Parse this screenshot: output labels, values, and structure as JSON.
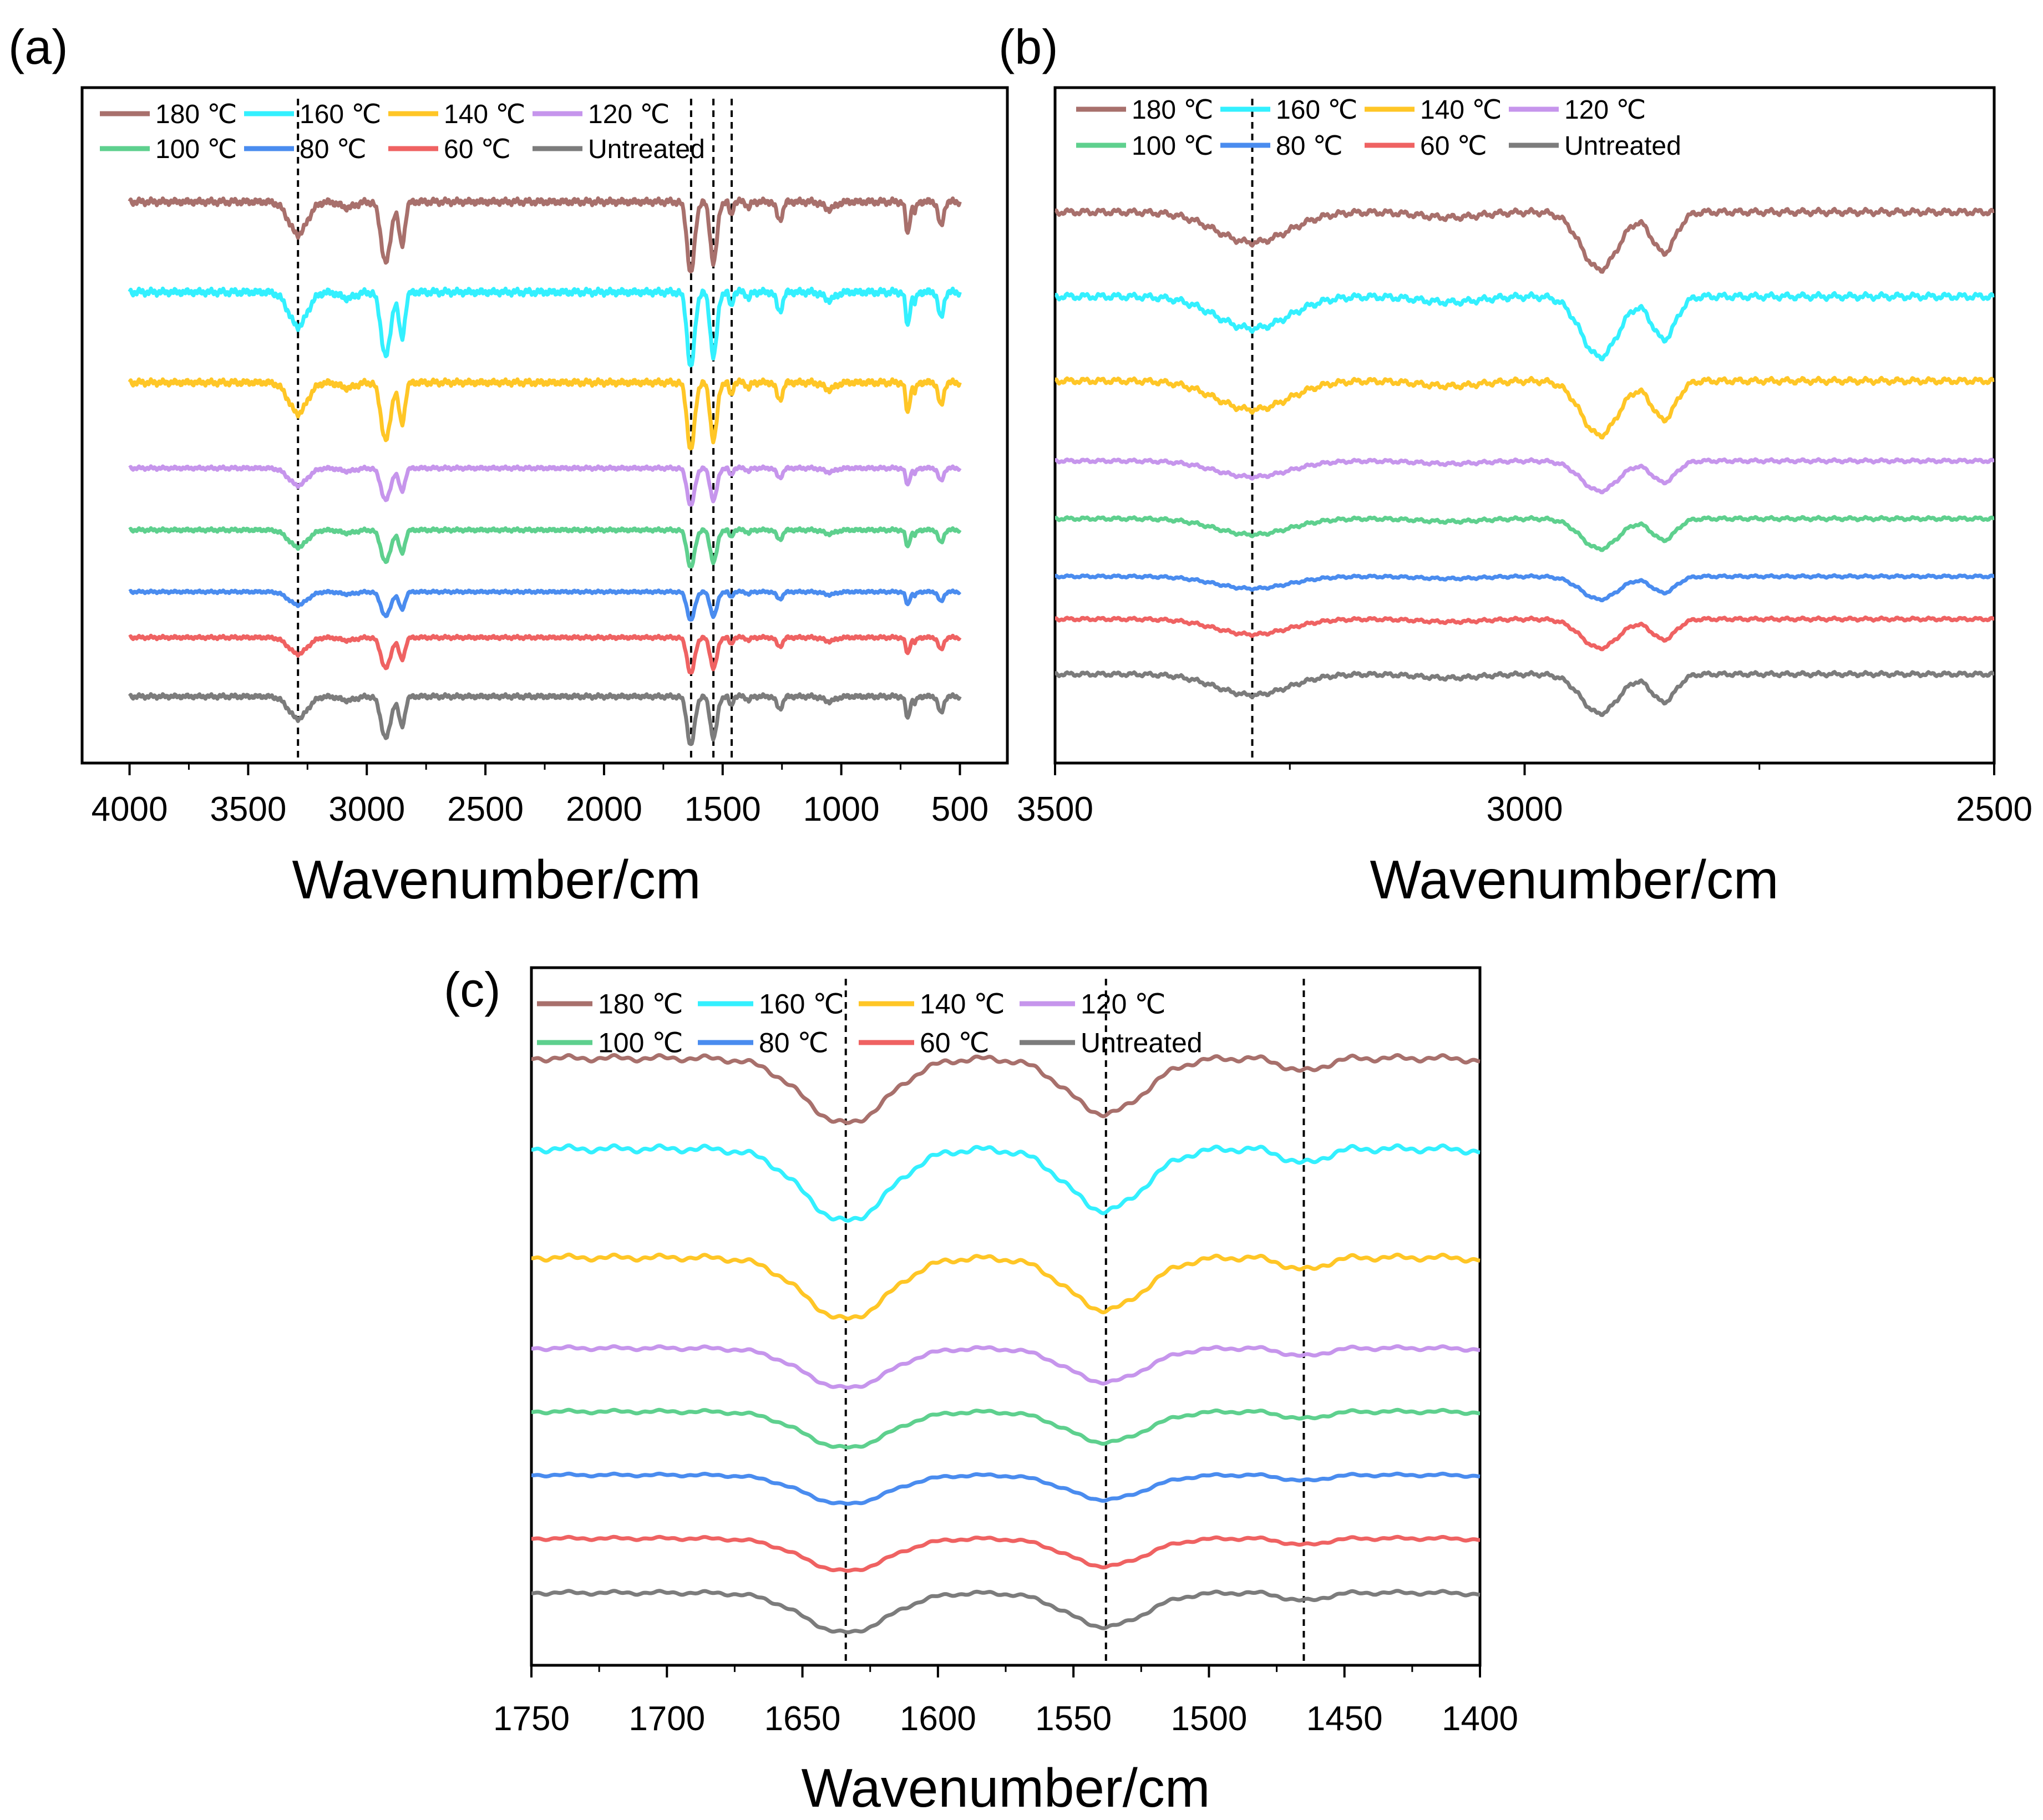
{
  "colors": {
    "180 ℃": "#a8706c",
    "160 ℃": "#33f0ff",
    "140 ℃": "#ffc626",
    "120 ℃": "#c695ec",
    "100 ℃": "#5ed08e",
    "80 ℃": "#4a8cef",
    "60 ℃": "#ef6262",
    "Untreated": "#7c7c7c",
    "dashed_line": "#000000"
  },
  "chart_data": [
    {
      "panel": "(a)",
      "type": "line",
      "title": "",
      "xlabel": "Wavenumber/cm",
      "ylabel": "",
      "xlim": [
        4200,
        300
      ],
      "x_ticks": [
        4000,
        3500,
        3000,
        2500,
        2000,
        1500,
        1000,
        500
      ],
      "x_tick_labels": [
        "4000",
        "3500",
        "3000",
        "2500",
        "2000",
        "1500",
        "1000",
        "500"
      ],
      "x_range": [
        4000,
        500
      ],
      "marker_lines": [
        3290,
        1633,
        1539,
        1462
      ],
      "legend": {
        "position": "top-left",
        "row1": [
          "180 ℃",
          "160 ℃",
          "140 ℃",
          "120 ℃"
        ],
        "row2": [
          "100 ℃",
          "80 ℃",
          "60 ℃",
          "Untreated"
        ]
      },
      "series": [
        {
          "name": "180 ℃",
          "baseline": 6.2,
          "scale": 0.95
        },
        {
          "name": "160 ℃",
          "baseline": 5.25,
          "scale": 1.0
        },
        {
          "name": "140 ℃",
          "baseline": 4.3,
          "scale": 0.9
        },
        {
          "name": "120 ℃",
          "baseline": 3.4,
          "scale": 0.5
        },
        {
          "name": "100 ℃",
          "baseline": 2.75,
          "scale": 0.5
        },
        {
          "name": "80 ℃",
          "baseline": 2.1,
          "scale": 0.38
        },
        {
          "name": "60 ℃",
          "baseline": 1.62,
          "scale": 0.48
        },
        {
          "name": "Untreated",
          "baseline": 1.0,
          "scale": 0.65
        }
      ]
    },
    {
      "panel": "(b)",
      "type": "line",
      "title": "",
      "xlabel": "Wavenumber/cm",
      "ylabel": "",
      "xlim": [
        3500,
        2500
      ],
      "x_ticks": [
        3500,
        3000,
        2500
      ],
      "x_tick_labels": [
        "3500",
        "3000",
        "2500"
      ],
      "x_range": [
        3500,
        2500
      ],
      "marker_lines": [
        3290
      ],
      "legend": {
        "position": "top-left",
        "row1": [
          "180 ℃",
          "160 ℃",
          "140 ℃",
          "120 ℃"
        ],
        "row2": [
          "100 ℃",
          "80 ℃",
          "60 ℃",
          "Untreated"
        ]
      },
      "series": [
        {
          "name": "180 ℃",
          "baseline": 6.2,
          "scale": 0.95
        },
        {
          "name": "160 ℃",
          "baseline": 5.25,
          "scale": 1.0
        },
        {
          "name": "140 ℃",
          "baseline": 4.3,
          "scale": 0.9
        },
        {
          "name": "120 ℃",
          "baseline": 3.4,
          "scale": 0.5
        },
        {
          "name": "100 ℃",
          "baseline": 2.75,
          "scale": 0.5
        },
        {
          "name": "80 ℃",
          "baseline": 2.1,
          "scale": 0.38
        },
        {
          "name": "60 ℃",
          "baseline": 1.62,
          "scale": 0.48
        },
        {
          "name": "Untreated",
          "baseline": 1.0,
          "scale": 0.65
        }
      ]
    },
    {
      "panel": "(c)",
      "type": "line",
      "title": "",
      "xlabel": "Wavenumber/cm",
      "ylabel": "",
      "xlim": [
        1750,
        1400
      ],
      "x_ticks": [
        1750,
        1700,
        1650,
        1600,
        1550,
        1500,
        1450,
        1400
      ],
      "x_tick_labels": [
        "1750",
        "1700",
        "1650",
        "1600",
        "1550",
        "1500",
        "1450",
        "1400"
      ],
      "x_range": [
        1750,
        1400
      ],
      "marker_lines": [
        1634,
        1538,
        1465
      ],
      "legend": {
        "position": "top-left",
        "row1": [
          "180 ℃",
          "160 ℃",
          "140 ℃",
          "120 ℃"
        ],
        "row2": [
          "100 ℃",
          "80 ℃",
          "60 ℃",
          "Untreated"
        ]
      },
      "series": [
        {
          "name": "180 ℃",
          "baseline": 8.6,
          "scale": 0.9
        },
        {
          "name": "160 ℃",
          "baseline": 7.6,
          "scale": 1.0
        },
        {
          "name": "140 ℃",
          "baseline": 6.4,
          "scale": 0.85
        },
        {
          "name": "120 ℃",
          "baseline": 5.4,
          "scale": 0.55
        },
        {
          "name": "100 ℃",
          "baseline": 4.7,
          "scale": 0.5
        },
        {
          "name": "80 ℃",
          "baseline": 4.0,
          "scale": 0.4
        },
        {
          "name": "60 ℃",
          "baseline": 3.3,
          "scale": 0.45
        },
        {
          "name": "Untreated",
          "baseline": 2.7,
          "scale": 0.55
        }
      ]
    }
  ]
}
